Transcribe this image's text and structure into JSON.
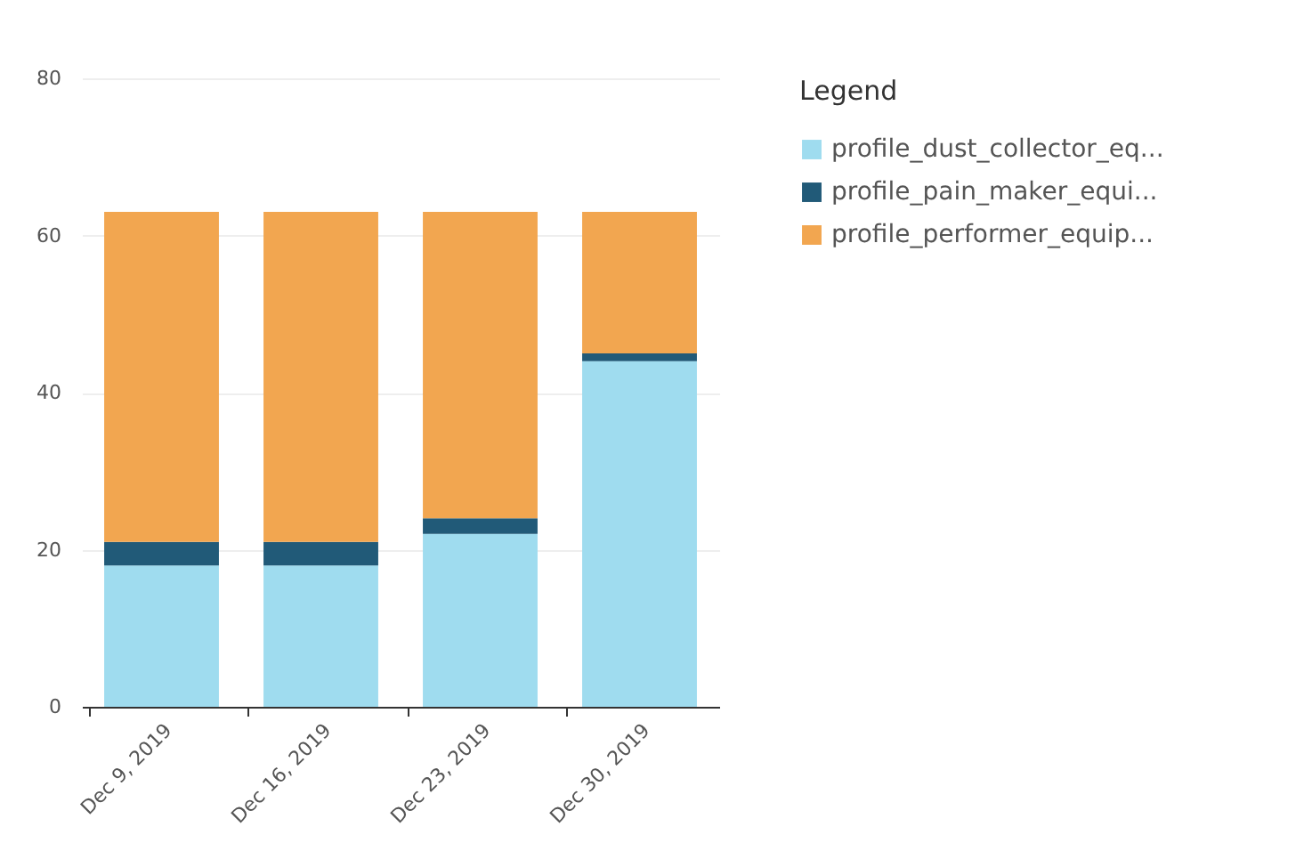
{
  "chart_data": {
    "type": "bar",
    "stacked": true,
    "legend_title": "Legend",
    "categories": [
      "Dec 9, 2019",
      "Dec 16, 2019",
      "Dec 23, 2019",
      "Dec 30, 2019"
    ],
    "series": [
      {
        "name": "profile_dust_collector_eq...",
        "color": "#9fdcef",
        "values": [
          18,
          18,
          22,
          44
        ]
      },
      {
        "name": "profile_pain_maker_equi...",
        "color": "#215a78",
        "values": [
          3,
          3,
          2,
          1
        ]
      },
      {
        "name": "profile_performer_equip...",
        "color": "#f2a650",
        "values": [
          42,
          42,
          39,
          18
        ]
      }
    ],
    "ylim": [
      0,
      80
    ],
    "yticks": [
      0,
      20,
      40,
      60,
      80
    ],
    "grid": "y",
    "legend": "top right"
  }
}
